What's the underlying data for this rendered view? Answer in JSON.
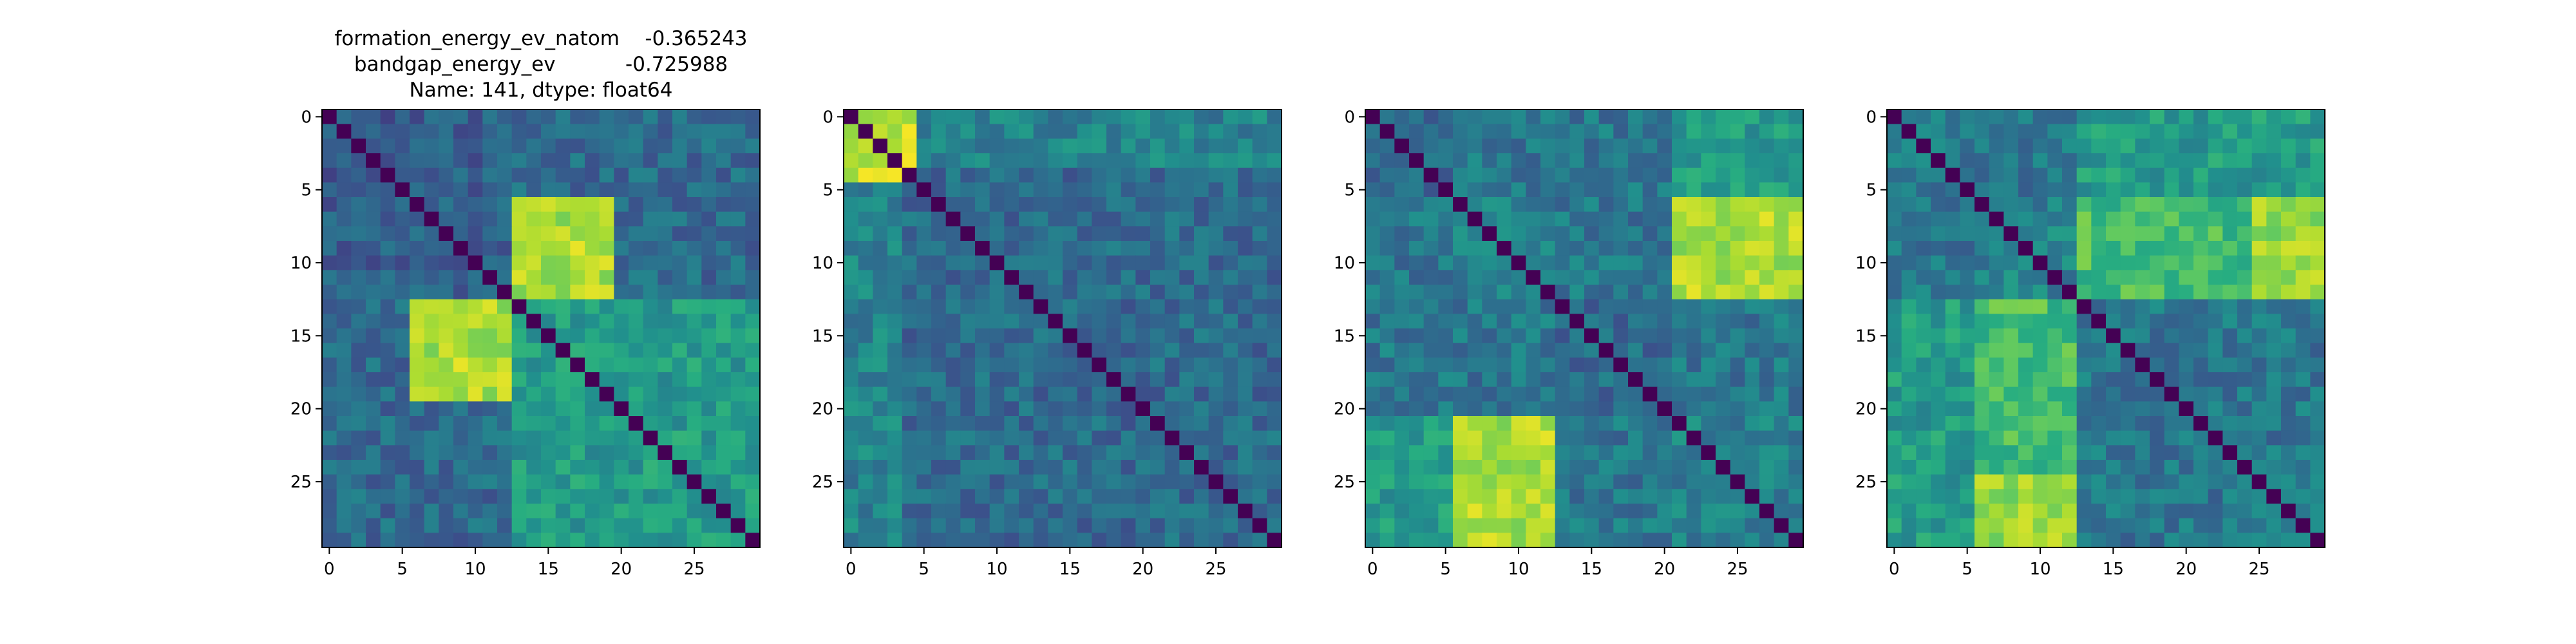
{
  "figure": {
    "title_lines": [
      "formation_energy_ev_natom    -0.365243",
      "bandgap_energy_ev           -0.725988",
      "Name: 141, dtype: float64"
    ]
  },
  "chart_data": [
    {
      "type": "heatmap",
      "colormap": "viridis",
      "size": 30,
      "x_ticks": [
        0,
        5,
        10,
        15,
        20,
        25
      ],
      "y_ticks": [
        0,
        5,
        10,
        15,
        20,
        25
      ],
      "xlim": [
        -0.5,
        29.5
      ],
      "ylim": [
        29.5,
        -0.5
      ],
      "grid": false,
      "block_boundaries": [
        0,
        13,
        30
      ],
      "block_values": [
        [
          0.3,
          0.35
        ],
        [
          0.35,
          0.55
        ]
      ],
      "hot_rows": [
        6,
        12
      ],
      "hot_cols": [
        13,
        19
      ],
      "hot_value": 0.88
    },
    {
      "type": "heatmap",
      "colormap": "viridis",
      "size": 30,
      "x_ticks": [
        0,
        5,
        10,
        15,
        20,
        25
      ],
      "y_ticks": [
        0,
        5,
        10,
        15,
        20,
        25
      ],
      "xlim": [
        -0.5,
        29.5
      ],
      "ylim": [
        29.5,
        -0.5
      ],
      "grid": false,
      "block_boundaries": [
        0,
        4,
        30
      ],
      "block_values": [
        [
          0.55,
          0.45
        ],
        [
          0.45,
          0.35
        ]
      ],
      "hot_rows": [
        0,
        4
      ],
      "hot_cols": [
        0,
        4
      ],
      "hot_value": 0.92
    },
    {
      "type": "heatmap",
      "colormap": "viridis",
      "size": 30,
      "x_ticks": [
        0,
        5,
        10,
        15,
        20,
        25
      ],
      "y_ticks": [
        0,
        5,
        10,
        15,
        20,
        25
      ],
      "xlim": [
        -0.5,
        29.5
      ],
      "ylim": [
        29.5,
        -0.5
      ],
      "grid": false,
      "block_boundaries": [
        0,
        6,
        13,
        21,
        30
      ],
      "block_values": [
        [
          0.35,
          0.4,
          0.4,
          0.55
        ],
        [
          0.4,
          0.45,
          0.4,
          0.75
        ],
        [
          0.4,
          0.4,
          0.35,
          0.4
        ],
        [
          0.55,
          0.8,
          0.4,
          0.45
        ]
      ],
      "hot_rows": [
        21,
        29
      ],
      "hot_cols": [
        6,
        12
      ],
      "hot_value": 0.88
    },
    {
      "type": "heatmap",
      "colormap": "viridis",
      "size": 30,
      "x_ticks": [
        0,
        5,
        10,
        15,
        20,
        25
      ],
      "y_ticks": [
        0,
        5,
        10,
        15,
        20,
        25
      ],
      "xlim": [
        -0.5,
        29.5
      ],
      "ylim": [
        29.5,
        -0.5
      ],
      "grid": false,
      "block_boundaries": [
        0,
        6,
        13,
        30
      ],
      "block_values": [
        [
          0.4,
          0.4,
          0.55
        ],
        [
          0.4,
          0.45,
          0.7
        ],
        [
          0.55,
          0.7,
          0.4
        ]
      ],
      "hot_rows": [
        25,
        29
      ],
      "hot_cols": [
        6,
        12
      ],
      "hot_value": 0.85
    }
  ]
}
